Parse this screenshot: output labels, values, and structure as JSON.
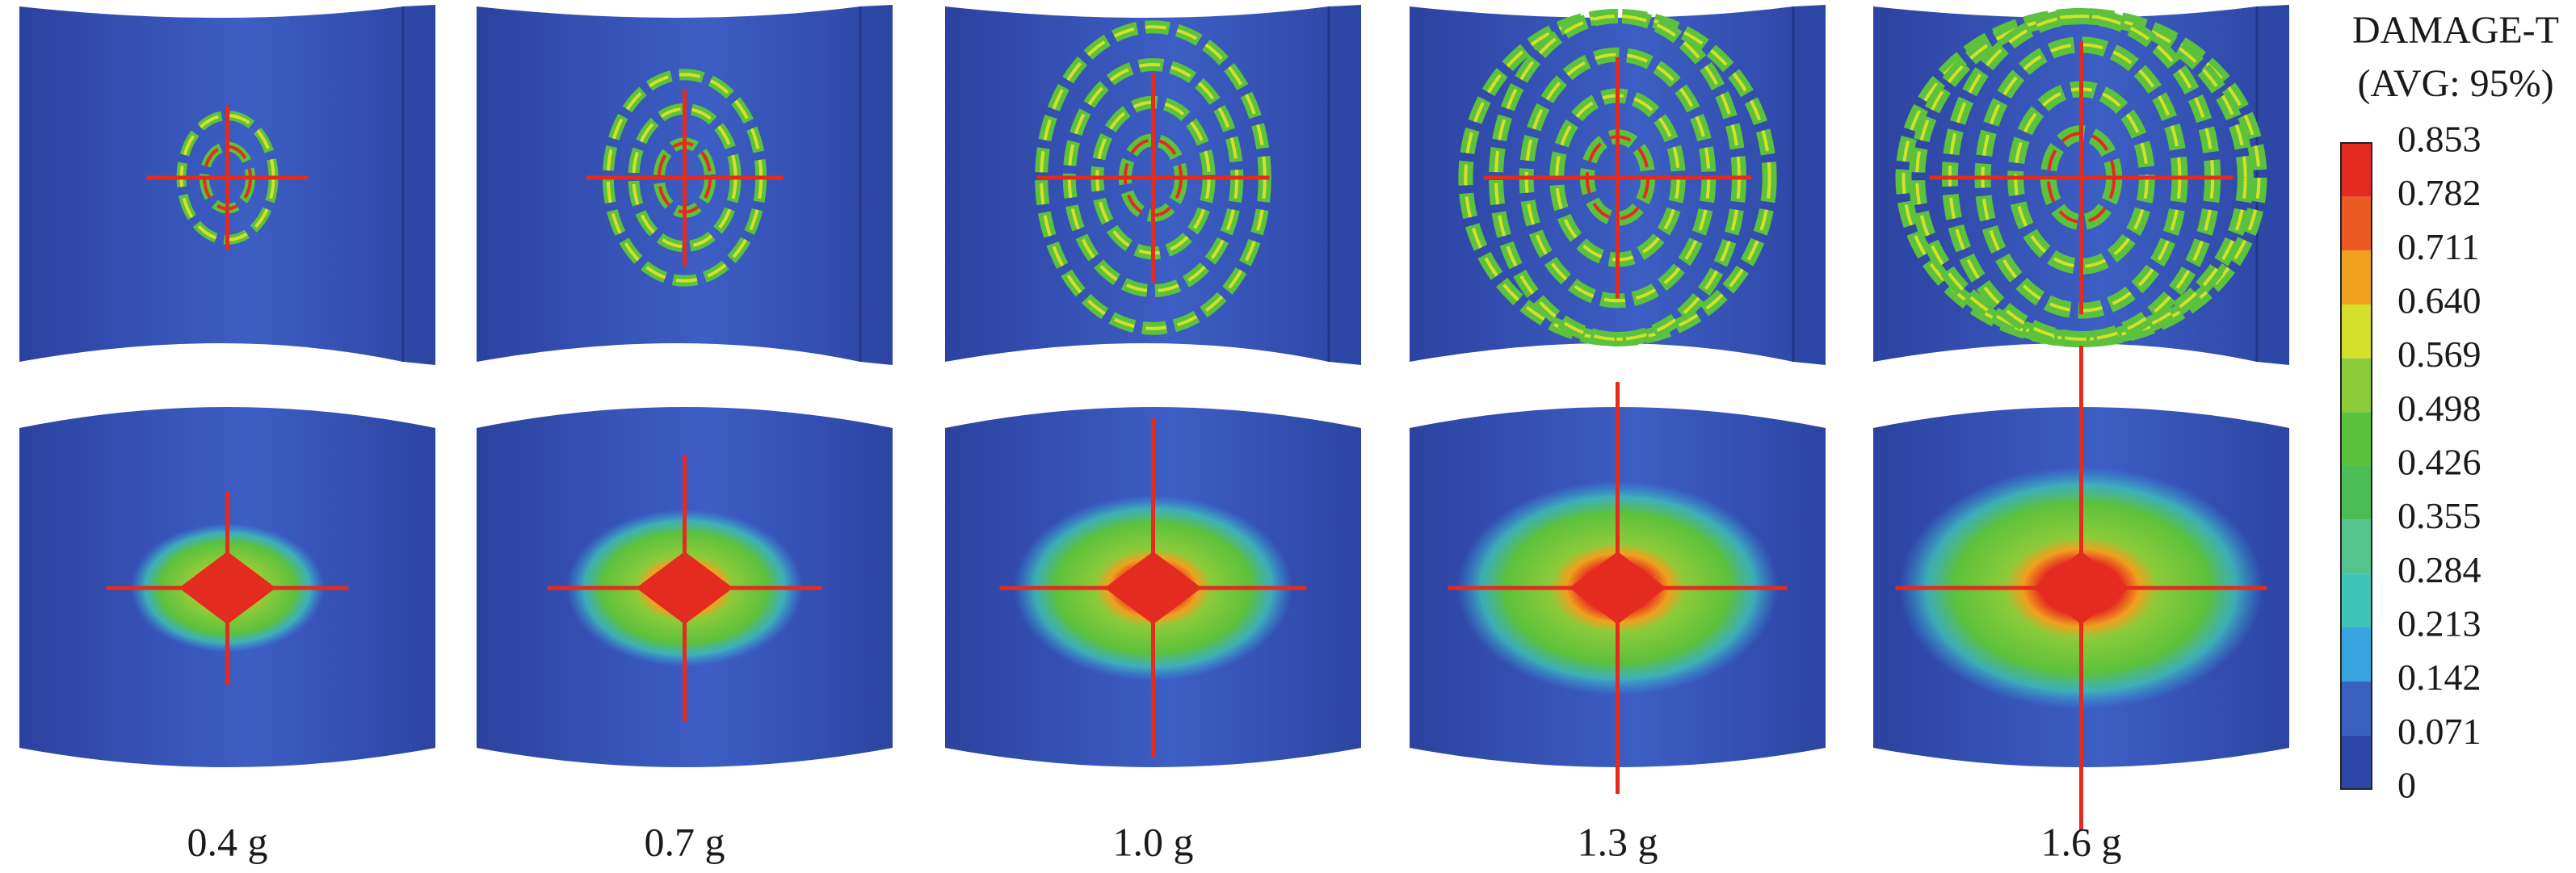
{
  "legend": {
    "title": "DAMAGE-T",
    "subtitle": "(AVG: 95%)",
    "levels": [
      "0.853",
      "0.782",
      "0.711",
      "0.640",
      "0.569",
      "0.498",
      "0.426",
      "0.355",
      "0.284",
      "0.213",
      "0.142",
      "0.071",
      "0"
    ],
    "colors": [
      "#e42b20",
      "#eb5a22",
      "#f0a11f",
      "#d5e02a",
      "#8ccb3a",
      "#5cc13c",
      "#4cbc55",
      "#55c48c",
      "#40c4b8",
      "#38a4e0",
      "#3a60c0",
      "#2e46a8"
    ]
  },
  "panels": {
    "labels": [
      "0.4 g",
      "0.7 g",
      "1.0 g",
      "1.3 g",
      "1.6 g"
    ]
  }
}
